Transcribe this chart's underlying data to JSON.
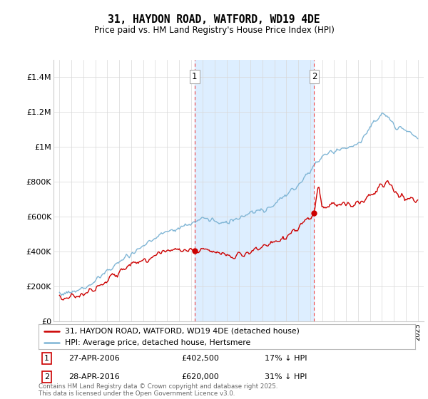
{
  "title": "31, HAYDON ROAD, WATFORD, WD19 4DE",
  "subtitle": "Price paid vs. HM Land Registry's House Price Index (HPI)",
  "ylim": [
    0,
    1500000
  ],
  "yticks": [
    0,
    200000,
    400000,
    600000,
    800000,
    1000000,
    1200000,
    1400000
  ],
  "ytick_labels": [
    "£0",
    "£200K",
    "£400K",
    "£600K",
    "£800K",
    "£1M",
    "£1.2M",
    "£1.4M"
  ],
  "sale1_date": 2006.32,
  "sale1_price": 402500,
  "sale2_date": 2016.33,
  "sale2_price": 620000,
  "hpi_color": "#7fb5d5",
  "price_color": "#cc0000",
  "vline_color": "#ee4444",
  "shade_color": "#ddeeff",
  "grid_color": "#d8d8d8",
  "background_color": "#ffffff",
  "legend_label_price": "31, HAYDON ROAD, WATFORD, WD19 4DE (detached house)",
  "legend_label_hpi": "HPI: Average price, detached house, Hertsmere",
  "footnote": "Contains HM Land Registry data © Crown copyright and database right 2025.\nThis data is licensed under the Open Government Licence v3.0.",
  "xmin": 1994.5,
  "xmax": 2025.5
}
